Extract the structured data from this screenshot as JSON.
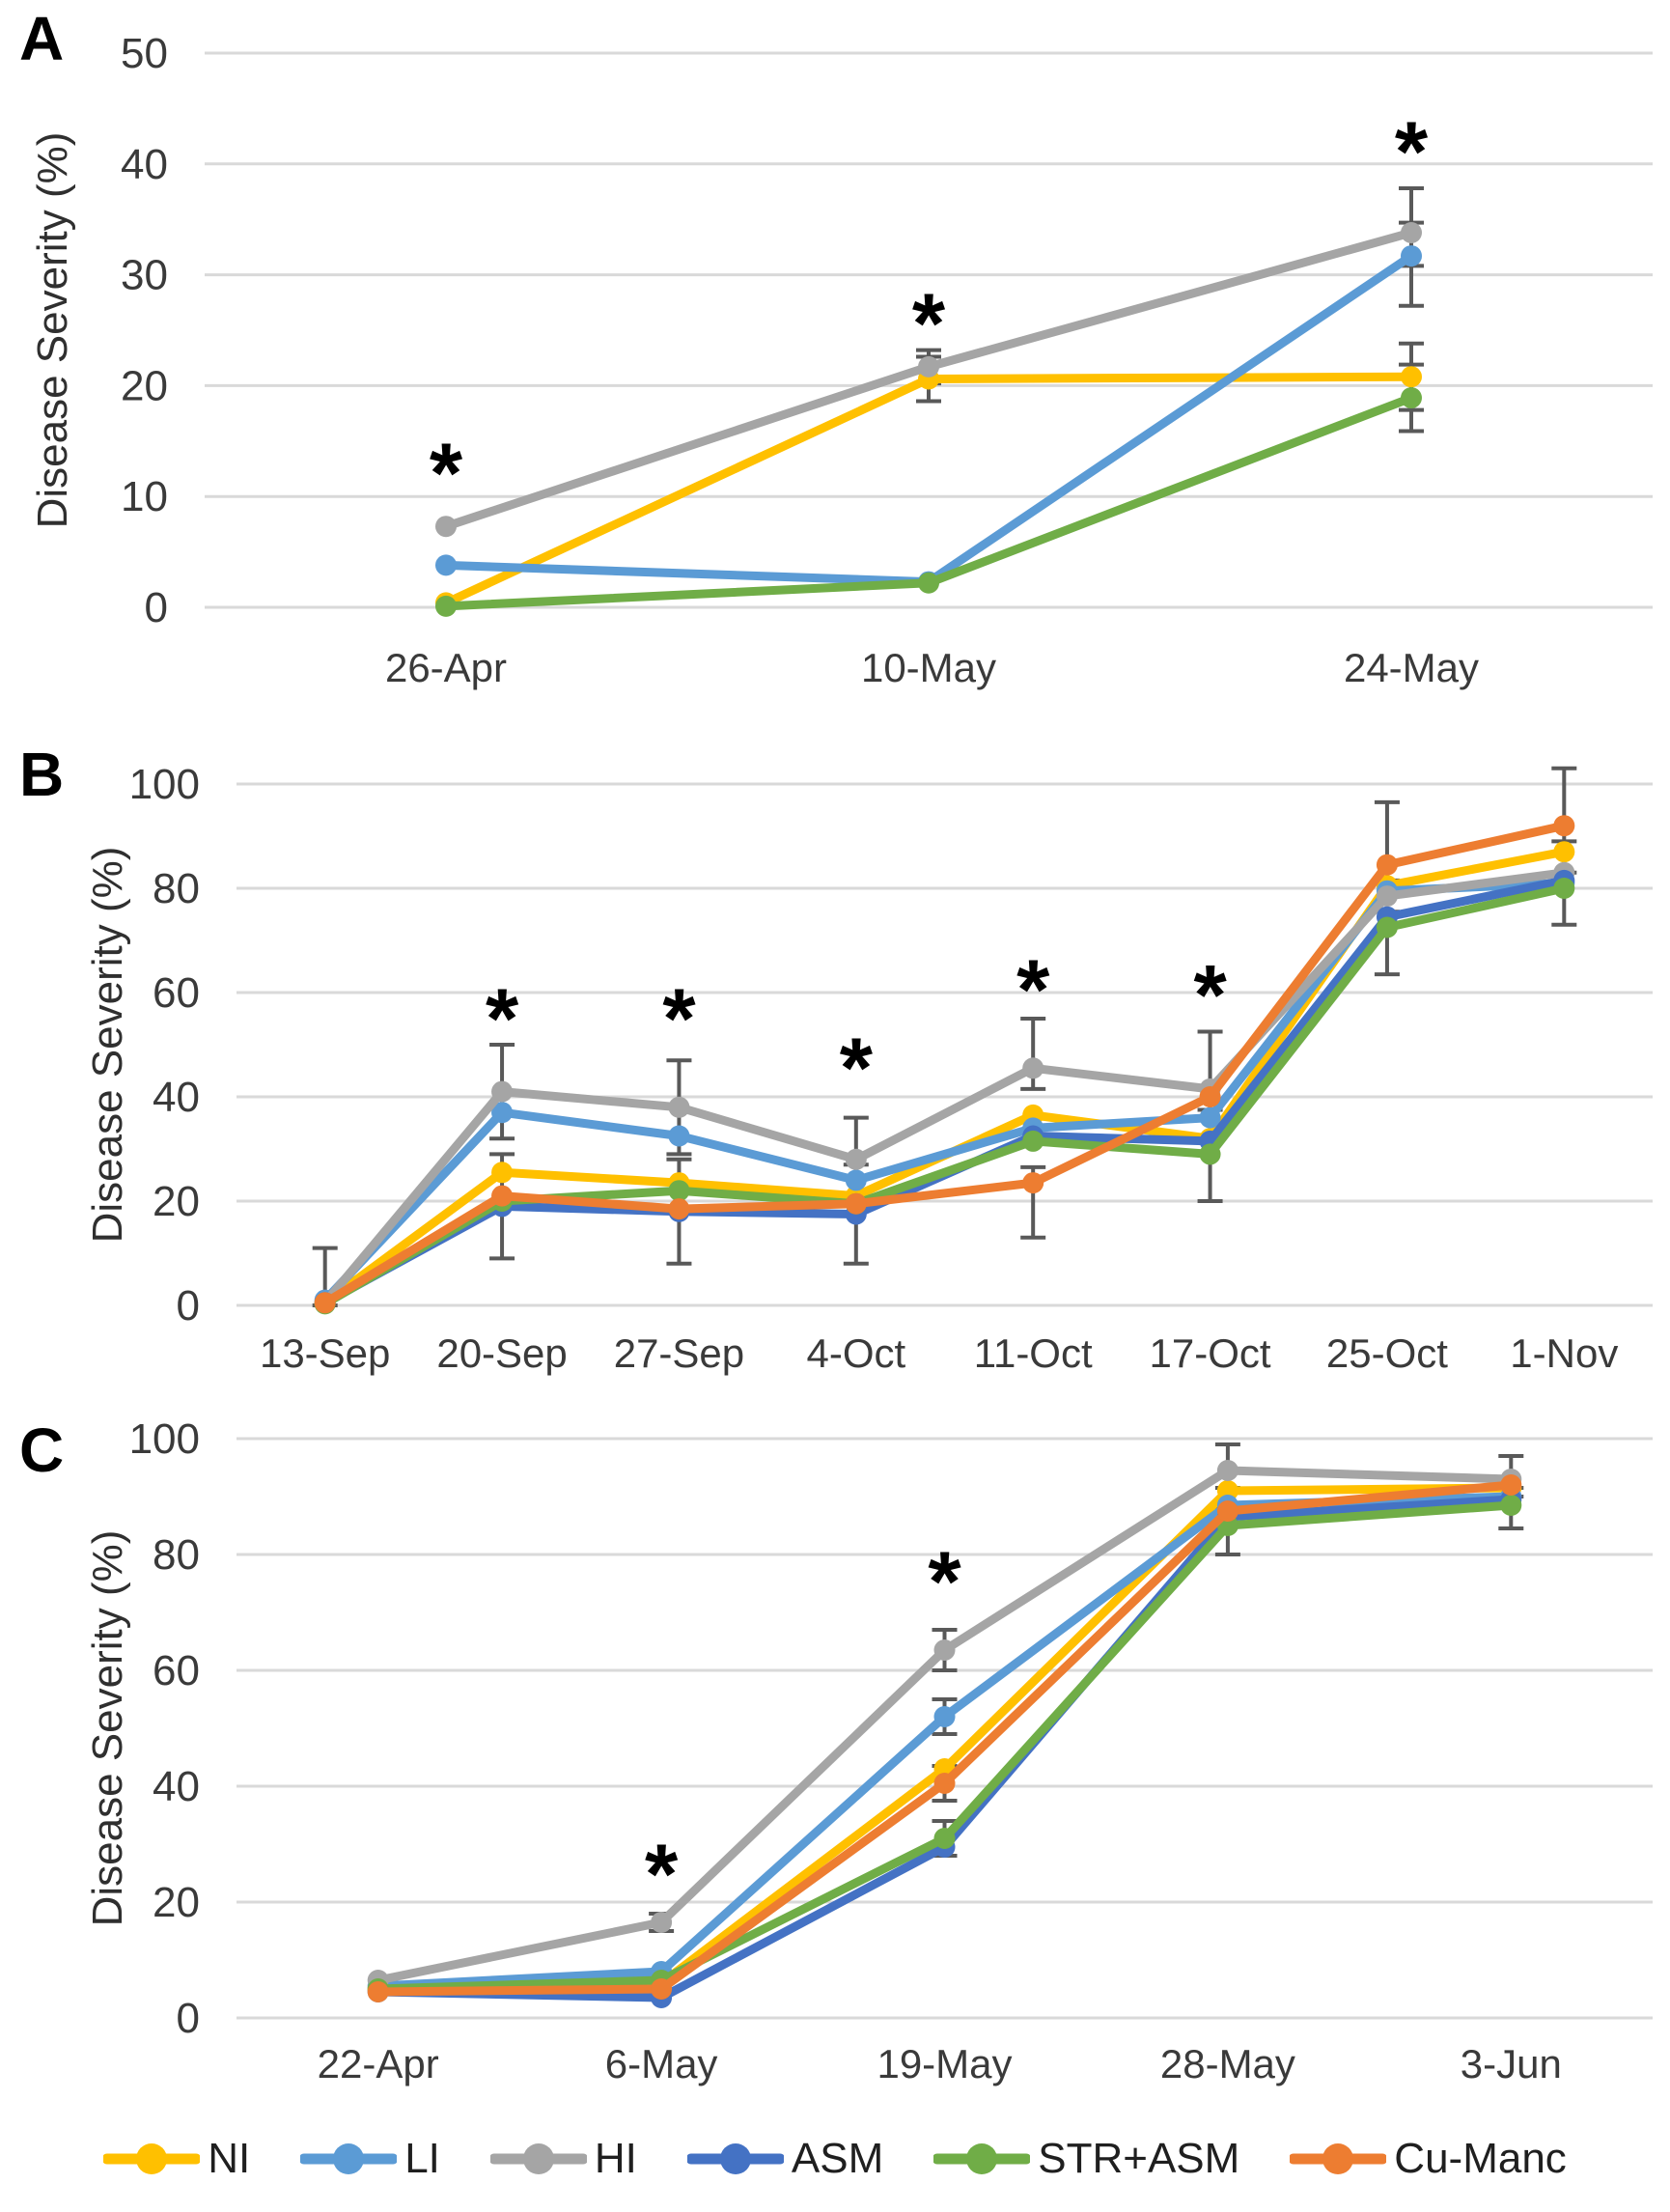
{
  "figure_title": "",
  "axis": {
    "y_label": "Disease Severity (%)",
    "grid_color": "#D9D9D9",
    "tick_color": "#3A3A3A",
    "error_bar_color": "#595959",
    "asterisk": "*"
  },
  "legend": [
    {
      "label": "NI",
      "color": "#FFC000"
    },
    {
      "label": "LI",
      "color": "#5B9BD5"
    },
    {
      "label": "HI",
      "color": "#A5A5A5"
    },
    {
      "label": "ASM",
      "color": "#4472C4"
    },
    {
      "label": "STR+ASM",
      "color": "#70AD47"
    },
    {
      "label": "Cu-Manc",
      "color": "#ED7D31"
    }
  ],
  "chart_data": [
    {
      "label": "A",
      "type": "line",
      "ylabel": "Disease Severity (%)",
      "xlabel": "",
      "ylim": [
        0,
        50
      ],
      "yticks": [
        0,
        10,
        20,
        30,
        40,
        50
      ],
      "grid": true,
      "legend_position": "bottom-shared",
      "categories": [
        "26-Apr",
        "10-May",
        "24-May"
      ],
      "series": [
        {
          "name": "NI",
          "color": "#FFC000",
          "values": [
            0.4,
            20.6,
            20.8
          ]
        },
        {
          "name": "LI",
          "color": "#5B9BD5",
          "values": [
            3.8,
            2.3,
            31.7
          ]
        },
        {
          "name": "HI",
          "color": "#A5A5A5",
          "values": [
            7.3,
            21.7,
            33.8
          ]
        },
        {
          "name": "STR+ASM",
          "color": "#70AD47",
          "values": [
            0.1,
            2.2,
            18.9
          ]
        }
      ],
      "error_bars": [
        {
          "series": "HI",
          "category": "10-May",
          "plus": 1.5,
          "minus": 1.5
        },
        {
          "series": "NI",
          "category": "10-May",
          "plus": 2,
          "minus": 2
        },
        {
          "series": "HI",
          "category": "24-May",
          "plus": 4,
          "minus": 3
        },
        {
          "series": "LI",
          "category": "24-May",
          "plus": 3,
          "minus": 4.5
        },
        {
          "series": "NI",
          "category": "24-May",
          "plus": 3,
          "minus": 3
        },
        {
          "series": "STR+ASM",
          "category": "24-May",
          "plus": 3,
          "minus": 3
        }
      ],
      "asterisks": [
        {
          "category": "26-Apr",
          "y": 13.5
        },
        {
          "category": "10-May",
          "y": 27
        },
        {
          "category": "24-May",
          "y": 42.5
        }
      ]
    },
    {
      "label": "B",
      "type": "line",
      "ylabel": "Disease Severity (%)",
      "xlabel": "",
      "ylim": [
        0,
        100
      ],
      "yticks": [
        0,
        20,
        40,
        60,
        80,
        100
      ],
      "grid": true,
      "legend_position": "bottom-shared",
      "categories": [
        "13-Sep",
        "20-Sep",
        "27-Sep",
        "4-Oct",
        "11-Oct",
        "17-Oct",
        "25-Oct",
        "1-Nov"
      ],
      "series": [
        {
          "name": "NI",
          "color": "#FFC000",
          "values": [
            0.5,
            25.5,
            23.5,
            21,
            36.5,
            32,
            80.5,
            87
          ]
        },
        {
          "name": "LI",
          "color": "#5B9BD5",
          "values": [
            1,
            37,
            32.5,
            24,
            34,
            36,
            79.5,
            81
          ]
        },
        {
          "name": "HI",
          "color": "#A5A5A5",
          "values": [
            0.5,
            41,
            38,
            28,
            45.5,
            41.5,
            78.5,
            83
          ]
        },
        {
          "name": "ASM",
          "color": "#4472C4",
          "values": [
            0.5,
            19,
            18,
            17.5,
            32.5,
            31.5,
            74.5,
            81.5
          ]
        },
        {
          "name": "STR+ASM",
          "color": "#70AD47",
          "values": [
            0.3,
            20,
            22,
            19.5,
            31.5,
            29,
            72.5,
            80
          ]
        },
        {
          "name": "Cu-Manc",
          "color": "#ED7D31",
          "values": [
            0.5,
            21,
            18.5,
            19.5,
            23.5,
            40,
            84.5,
            92
          ]
        }
      ],
      "error_bars": [
        {
          "series": "HI",
          "category": "13-Sep",
          "plus": 10.5,
          "minus": 0.5
        },
        {
          "series": "HI",
          "category": "20-Sep",
          "plus": 9,
          "minus": 9
        },
        {
          "series": "ASM",
          "category": "20-Sep",
          "plus": 10,
          "minus": 10
        },
        {
          "series": "HI",
          "category": "27-Sep",
          "plus": 9,
          "minus": 9
        },
        {
          "series": "ASM",
          "category": "27-Sep",
          "plus": 10,
          "minus": 10
        },
        {
          "series": "HI",
          "category": "4-Oct",
          "plus": 8,
          "minus": 8
        },
        {
          "series": "ASM",
          "category": "4-Oct",
          "plus": 9.5,
          "minus": 9.5
        },
        {
          "series": "HI",
          "category": "11-Oct",
          "plus": 9.5,
          "minus": 4
        },
        {
          "series": "Cu-Manc",
          "category": "11-Oct",
          "plus": 3,
          "minus": 10.5
        },
        {
          "series": "HI",
          "category": "17-Oct",
          "plus": 11,
          "minus": 4
        },
        {
          "series": "STR+ASM",
          "category": "17-Oct",
          "plus": 3,
          "minus": 9
        },
        {
          "series": "Cu-Manc",
          "category": "25-Oct",
          "plus": 12,
          "minus": 3
        },
        {
          "series": "STR+ASM",
          "category": "25-Oct",
          "plus": 3,
          "minus": 9
        },
        {
          "series": "Cu-Manc",
          "category": "1-Nov",
          "plus": 11,
          "minus": 3
        },
        {
          "series": "STR+ASM",
          "category": "1-Nov",
          "plus": 3,
          "minus": 7
        }
      ],
      "asterisks": [
        {
          "category": "20-Sep",
          "y": 58
        },
        {
          "category": "27-Sep",
          "y": 58
        },
        {
          "category": "4-Oct",
          "y": 48.5
        },
        {
          "category": "11-Oct",
          "y": 63.5
        },
        {
          "category": "17-Oct",
          "y": 62.5
        }
      ]
    },
    {
      "label": "C",
      "type": "line",
      "ylabel": "Disease Severity (%)",
      "xlabel": "",
      "ylim": [
        0,
        100
      ],
      "yticks": [
        0,
        20,
        40,
        60,
        80,
        100
      ],
      "grid": true,
      "legend_position": "bottom-shared",
      "categories": [
        "22-Apr",
        "6-May",
        "19-May",
        "28-May",
        "3-Jun"
      ],
      "series": [
        {
          "name": "NI",
          "color": "#FFC000",
          "values": [
            5,
            6,
            43,
            91,
            91.5
          ]
        },
        {
          "name": "LI",
          "color": "#5B9BD5",
          "values": [
            5.5,
            8,
            52,
            88.5,
            90
          ]
        },
        {
          "name": "HI",
          "color": "#A5A5A5",
          "values": [
            6.5,
            16.5,
            63.5,
            94.5,
            93
          ]
        },
        {
          "name": "ASM",
          "color": "#4472C4",
          "values": [
            4.5,
            3.5,
            29.5,
            86.5,
            89.5
          ]
        },
        {
          "name": "STR+ASM",
          "color": "#70AD47",
          "values": [
            5,
            6.5,
            31,
            85,
            88.5
          ]
        },
        {
          "name": "Cu-Manc",
          "color": "#ED7D31",
          "values": [
            4.5,
            5,
            40.5,
            87.5,
            92
          ]
        }
      ],
      "error_bars": [
        {
          "series": "HI",
          "category": "6-May",
          "plus": 1.5,
          "minus": 1.5
        },
        {
          "series": "HI",
          "category": "19-May",
          "plus": 3.5,
          "minus": 3.5
        },
        {
          "series": "LI",
          "category": "19-May",
          "plus": 3,
          "minus": 3
        },
        {
          "series": "Cu-Manc",
          "category": "19-May",
          "plus": 3,
          "minus": 3
        },
        {
          "series": "STR+ASM",
          "category": "19-May",
          "plus": 3,
          "minus": 3
        },
        {
          "series": "HI",
          "category": "28-May",
          "plus": 4.5,
          "minus": 3
        },
        {
          "series": "STR+ASM",
          "category": "28-May",
          "plus": 3,
          "minus": 5
        },
        {
          "series": "HI",
          "category": "3-Jun",
          "plus": 4,
          "minus": 3
        },
        {
          "series": "STR+ASM",
          "category": "3-Jun",
          "plus": 3,
          "minus": 4
        }
      ],
      "asterisks": [
        {
          "category": "6-May",
          "y": 27.5
        },
        {
          "category": "19-May",
          "y": 78
        }
      ]
    }
  ]
}
